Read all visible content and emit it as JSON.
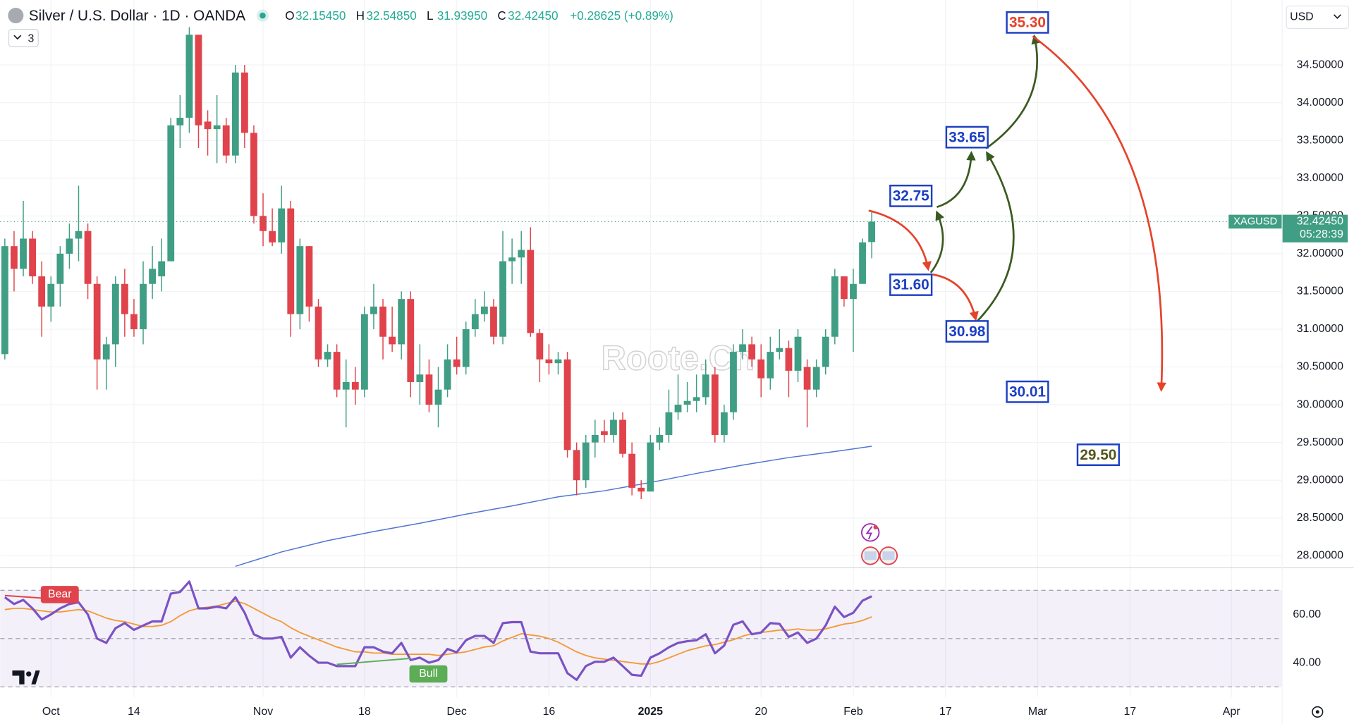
{
  "chart_data": [
    {
      "type": "candlestick",
      "title": "Silver / U.S. Dollar · 1D · OANDA",
      "indicator_count": "3",
      "currency": "USD",
      "ohlc_legend": [
        {
          "key": "O",
          "value": "32.15450"
        },
        {
          "key": "H",
          "value": "32.54850"
        },
        {
          "key": "L",
          "value": "31.93950"
        },
        {
          "key": "C",
          "value": "32.42450"
        }
      ],
      "change": "+0.28625 (+0.89%)",
      "up_color": "#3f9e84",
      "down_color": "#e0434b",
      "open": [
        30.67,
        32.1,
        31.8,
        32.2,
        31.7,
        31.3,
        31.6,
        32.0,
        32.2,
        32.3,
        31.6,
        30.6,
        30.8,
        31.6,
        31.2,
        31.0,
        31.6,
        31.7,
        31.9,
        33.7,
        33.8,
        34.9,
        33.75,
        33.65,
        33.7,
        33.3,
        34.4,
        33.6,
        32.5,
        32.3,
        32.15,
        32.6,
        31.2,
        32.1,
        31.3,
        30.6,
        30.7,
        30.2,
        30.3,
        30.2,
        31.2,
        31.3,
        30.9,
        30.8,
        31.4,
        30.3,
        30.4,
        30.0,
        30.2,
        30.6,
        30.5,
        31.0,
        31.2,
        31.3,
        30.9,
        31.9,
        31.95,
        32.05,
        30.95,
        30.6,
        30.55,
        30.6,
        29.4,
        29.0,
        29.5,
        29.65,
        29.6,
        29.8,
        29.35,
        28.9,
        28.85,
        29.5,
        29.6,
        29.9,
        30.0,
        30.05,
        30.1,
        30.4,
        29.6,
        29.9,
        30.7,
        30.8,
        30.6,
        30.35,
        30.7,
        30.75,
        30.45,
        30.5,
        30.2,
        30.5,
        30.9,
        31.7,
        31.4,
        31.6,
        32.1545
      ],
      "high": [
        32.2,
        32.3,
        32.7,
        32.3,
        31.9,
        31.7,
        32.1,
        32.4,
        32.9,
        32.4,
        31.7,
        30.9,
        31.7,
        31.8,
        31.4,
        31.9,
        32.1,
        32.2,
        33.8,
        34.1,
        35.0,
        34.9,
        33.9,
        34.1,
        33.8,
        34.5,
        34.5,
        33.7,
        32.8,
        32.6,
        32.9,
        32.7,
        32.2,
        32.1,
        31.4,
        30.8,
        30.8,
        30.6,
        30.5,
        31.3,
        31.6,
        31.4,
        31.3,
        31.5,
        31.5,
        30.8,
        30.6,
        30.5,
        30.8,
        30.9,
        31.1,
        31.4,
        31.5,
        31.4,
        32.3,
        32.2,
        32.3,
        32.35,
        31.0,
        30.8,
        30.7,
        30.7,
        29.5,
        29.6,
        29.8,
        29.8,
        29.9,
        29.9,
        29.5,
        29.0,
        29.6,
        29.7,
        30.2,
        30.4,
        30.3,
        30.4,
        30.6,
        30.5,
        30.0,
        30.8,
        31.0,
        30.9,
        30.8,
        30.9,
        31.0,
        30.85,
        31.0,
        30.6,
        30.6,
        31.0,
        31.8,
        31.7,
        31.8,
        32.2,
        32.5485
      ],
      "low": [
        30.6,
        31.5,
        31.7,
        31.6,
        30.9,
        31.1,
        31.3,
        31.8,
        31.9,
        31.4,
        30.2,
        30.2,
        30.5,
        30.9,
        30.9,
        30.8,
        31.4,
        31.5,
        31.9,
        33.4,
        33.6,
        33.4,
        33.3,
        33.2,
        33.2,
        33.2,
        33.4,
        32.4,
        32.1,
        32.1,
        32.0,
        30.9,
        31.0,
        31.1,
        30.5,
        30.5,
        30.1,
        29.7,
        30.0,
        30.1,
        31.0,
        30.6,
        30.7,
        30.6,
        30.1,
        30.0,
        29.9,
        29.7,
        30.1,
        30.4,
        30.4,
        30.9,
        31.1,
        30.8,
        30.8,
        31.6,
        31.6,
        30.9,
        30.3,
        30.4,
        30.4,
        29.3,
        28.8,
        28.9,
        29.3,
        29.5,
        29.5,
        29.3,
        28.8,
        28.75,
        28.85,
        29.4,
        29.5,
        29.8,
        29.9,
        29.9,
        30.0,
        29.5,
        29.5,
        29.8,
        30.6,
        30.5,
        30.1,
        30.2,
        30.6,
        30.1,
        30.3,
        29.7,
        30.1,
        30.4,
        30.8,
        31.3,
        30.7,
        31.6,
        31.9395
      ],
      "close": [
        32.1,
        31.8,
        32.2,
        31.7,
        31.3,
        31.6,
        32.0,
        32.2,
        32.3,
        31.6,
        30.6,
        30.8,
        31.6,
        31.2,
        31.0,
        31.6,
        31.8,
        31.9,
        33.7,
        33.8,
        34.9,
        33.7,
        33.65,
        33.7,
        33.3,
        34.4,
        33.6,
        32.5,
        32.3,
        32.15,
        32.6,
        31.2,
        32.1,
        31.3,
        30.6,
        30.7,
        30.2,
        30.3,
        30.2,
        31.2,
        31.3,
        30.9,
        30.8,
        31.4,
        30.3,
        30.4,
        30.0,
        30.2,
        30.6,
        30.5,
        31.0,
        31.2,
        31.3,
        30.9,
        31.9,
        31.95,
        32.05,
        30.95,
        30.6,
        30.55,
        30.6,
        29.4,
        29.0,
        29.5,
        29.6,
        29.6,
        29.8,
        29.35,
        28.9,
        28.85,
        29.5,
        29.6,
        29.9,
        30.0,
        30.05,
        30.1,
        30.4,
        29.6,
        29.9,
        30.7,
        30.8,
        30.6,
        30.35,
        30.7,
        30.75,
        30.45,
        30.9,
        30.2,
        30.5,
        30.9,
        31.7,
        31.4,
        31.6,
        32.15,
        32.4245
      ],
      "moving_average": {
        "color": "#4f74d1",
        "x": [
          25,
          30,
          35,
          40,
          45,
          50,
          55,
          60,
          65,
          70,
          75,
          80,
          85,
          90,
          94
        ],
        "values": [
          27.86,
          28.05,
          28.2,
          28.32,
          28.43,
          28.55,
          28.66,
          28.78,
          28.86,
          28.97,
          29.09,
          29.2,
          29.3,
          29.38,
          29.45
        ]
      },
      "last_price": {
        "symbol": "XAGUSD",
        "value": 32.4245,
        "label": "32.42450",
        "countdown": "05:28:39",
        "color": "#3f9e84"
      },
      "xlim": [
        -0.5,
        138.5
      ],
      "xticks": [
        {
          "value": 5,
          "label": "Oct"
        },
        14,
        {
          "value": 28,
          "label": "Nov"
        },
        {
          "value": 39,
          "label": "18"
        },
        {
          "value": 49,
          "label": "Dec"
        },
        {
          "value": 59,
          "label": "16"
        },
        {
          "value": 70,
          "label": "2025"
        },
        {
          "value": 82,
          "label": "20"
        },
        {
          "value": 92,
          "label": "Feb"
        },
        {
          "value": 102,
          "label": "17"
        },
        {
          "value": 112,
          "label": "Mar"
        },
        {
          "value": 122,
          "label": "17"
        },
        {
          "value": 133,
          "label": "Apr"
        }
      ],
      "ylim": [
        27.84,
        35.36
      ],
      "yticks": [
        {
          "value": 28,
          "label": "28.00000"
        },
        {
          "value": 28.5,
          "label": "28.50000"
        },
        {
          "value": 29,
          "label": "29.00000"
        },
        {
          "value": 29.5,
          "label": "29.50000"
        },
        {
          "value": 30,
          "label": "30.00000"
        },
        {
          "value": 30.5,
          "label": "30.50000"
        },
        {
          "value": 31,
          "label": "31.00000"
        },
        {
          "value": 31.5,
          "label": "31.50000"
        },
        {
          "value": 32,
          "label": "32.00000"
        },
        {
          "value": 32.5,
          "label": "32.50000"
        },
        {
          "value": 33,
          "label": "33.00000"
        },
        {
          "value": 33.5,
          "label": "33.50000"
        },
        {
          "value": 34,
          "label": "34.00000"
        },
        {
          "value": 34.5,
          "label": "34.50000"
        }
      ],
      "grid": true,
      "annotations": [
        {
          "text": "35.30",
          "color": "#e5432a"
        },
        {
          "text": "33.65",
          "color": "#1c3fc4"
        },
        {
          "text": "32.75",
          "color": "#1c3fc4"
        },
        {
          "text": "31.60",
          "color": "#1c3fc4"
        },
        {
          "text": "30.98",
          "color": "#1c3fc4"
        },
        {
          "text": "30.01",
          "color": "#1c3fc4"
        },
        {
          "text": "29.50",
          "color": "#55551c"
        }
      ],
      "watermark": "Roote.Cn"
    },
    {
      "type": "line",
      "series": [
        {
          "color": "#7b52c4",
          "values": [
            67.1,
            64.3,
            66,
            62.5,
            57.9,
            60,
            62.5,
            64.3,
            65,
            60,
            50,
            48.2,
            54.3,
            56.4,
            53.6,
            55.4,
            57.1,
            57.1,
            68.6,
            69.3,
            73.6,
            62.5,
            62.5,
            63.2,
            62.5,
            67.1,
            60.7,
            51.8,
            50,
            50,
            50.7,
            42.1,
            46.4,
            42.9,
            40,
            40,
            38.6,
            38.6,
            38.6,
            46.4,
            46.4,
            44.6,
            43.9,
            48.2,
            41.1,
            42.1,
            40,
            41.1,
            45.7,
            44.3,
            49.3,
            51.1,
            51.1,
            48.2,
            56.4,
            56.8,
            56.8,
            44.6,
            43.9,
            43.9,
            43.9,
            35.7,
            32.9,
            38.6,
            40.4,
            40.4,
            42.1,
            38.6,
            35,
            34.6,
            42.1,
            43.9,
            46.4,
            48.2,
            48.9,
            49.3,
            51.8,
            43.9,
            47.1,
            55.7,
            57.1,
            51.8,
            52.5,
            56.4,
            56.1,
            50.7,
            52.5,
            48.2,
            50,
            55.4,
            63.2,
            58.9,
            60.7,
            65.7,
            67.5
          ]
        },
        {
          "color": "#f39a33",
          "values": [
            62,
            62.5,
            62.5,
            62,
            61.5,
            61,
            61,
            61.5,
            62,
            61.5,
            60,
            58.5,
            57.5,
            57,
            56,
            55,
            55,
            55.5,
            57,
            59.5,
            61.5,
            62.5,
            63,
            63.5,
            64.5,
            65.5,
            64.5,
            62.5,
            60.5,
            58.5,
            57,
            54.5,
            52.5,
            51,
            49.5,
            48,
            46.5,
            45.5,
            44.5,
            44.5,
            44,
            44,
            43.5,
            43.5,
            43.5,
            43.5,
            43.5,
            43,
            43.5,
            44,
            44.5,
            45.5,
            46.5,
            47,
            49,
            50.5,
            52,
            51.5,
            51,
            50,
            48.5,
            46.5,
            44.5,
            43,
            42,
            41.5,
            41,
            40.5,
            40,
            39.5,
            39.5,
            40.5,
            42,
            43.5,
            45,
            46,
            47,
            47.5,
            48.5,
            49.5,
            51,
            52,
            52.5,
            53,
            53.5,
            53.5,
            54,
            53.5,
            53.5,
            54,
            55,
            56,
            56.5,
            57.5,
            59
          ]
        }
      ],
      "ylim": [
        25.7,
        79.3
      ],
      "yticks": [
        {
          "value": 60,
          "label": "60.00"
        },
        {
          "value": 40,
          "label": "40.00"
        }
      ],
      "levels": [
        70,
        50,
        30
      ],
      "divergences": [
        {
          "label": "Bear",
          "color": "#e0434b"
        },
        {
          "label": "Bull",
          "color": "#5cad55"
        }
      ]
    }
  ]
}
